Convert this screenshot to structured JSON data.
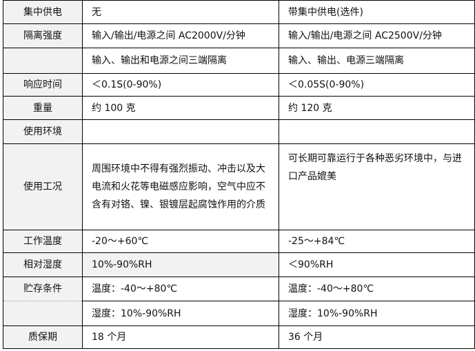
{
  "rows": [
    {
      "label": "集中供电",
      "a": "无",
      "b": "带集中供电(选件)"
    },
    {
      "label": "隔离强度",
      "a": "输入/输出/电源之间 AC2000V/分钟",
      "b": "输入/输出/电源之间 AC2500V/分钟"
    },
    {
      "label": "",
      "a": "输入、输出和电源之间三端隔离",
      "b": "输入、输出、电源三端隔离"
    },
    {
      "label": "响应时间",
      "a": "＜0.1S(0-90%)",
      "b": "＜0.05S(0-90%)"
    },
    {
      "label": "重量",
      "a": "约 100 克",
      "b": "约 120 克"
    },
    {
      "label": "使用环境",
      "a": "",
      "b": ""
    },
    {
      "label": "使用工况",
      "a": "周围环境中不得有强烈振动、冲击以及大电流和火花等电磁感应影响，空气中应不含有对铬、镍、银镀层起腐蚀作用的介质",
      "b": "可长期可靠运行于各种恶劣环境中，与进口产品媲美"
    },
    {
      "label": "工作温度",
      "a": "-20～+60℃",
      "b": "-25～+84℃"
    },
    {
      "label": "相对湿度",
      "a": "10%-90%RH",
      "b": "＜90%RH"
    },
    {
      "label": "贮存条件",
      "a": "温度：-40～+80℃",
      "b": "温度：-40～+80℃"
    },
    {
      "label": "",
      "a": "湿度：10%-90%RH",
      "b": "湿度：10%-90%RH"
    },
    {
      "label": "质保期",
      "a": "18 个月",
      "b": "36 个月"
    }
  ]
}
